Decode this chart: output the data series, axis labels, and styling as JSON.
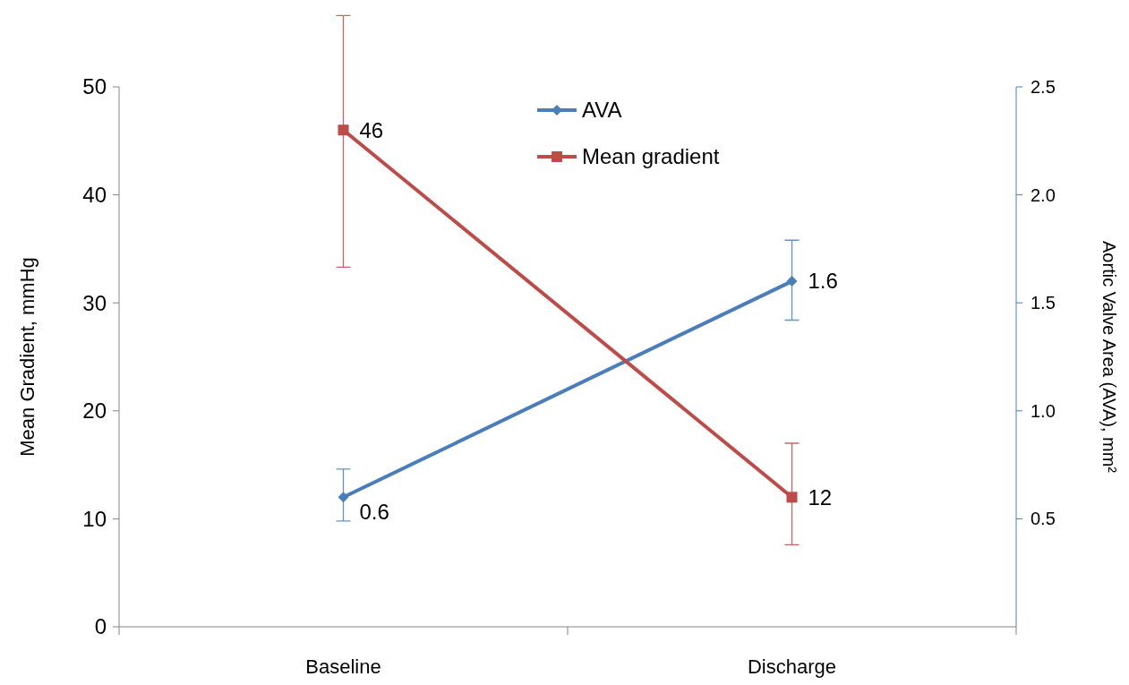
{
  "chart_data": {
    "type": "line",
    "categories": [
      "Baseline",
      "Discharge"
    ],
    "ylabel": "Mean Gradient, mmHg",
    "y2label": "Aortic Valve Area (AVA), mm²",
    "ylim": [
      0,
      50
    ],
    "yticks": [
      0,
      10,
      20,
      30,
      40,
      50
    ],
    "y2lim": [
      0,
      2.5
    ],
    "y2ticks": [
      {
        "value": 0.5,
        "label": "0.5"
      },
      {
        "value": 1.0,
        "label": "1.0"
      },
      {
        "value": 1.5,
        "label": "1.5"
      },
      {
        "value": 2.0,
        "label": "2.0"
      },
      {
        "value": 2.5,
        "label": "2.5"
      }
    ],
    "series": [
      {
        "name": "AVA",
        "color": "#4a7ebb",
        "values": [
          0.6,
          1.6
        ],
        "errors": [
          [
            0.49,
            0.73
          ],
          [
            1.42,
            1.79
          ]
        ],
        "axis": "y2",
        "marker": "diamond"
      },
      {
        "name": "Mean gradient",
        "color": "#be4b48",
        "values": [
          46,
          12
        ],
        "errors": [
          [
            33.3,
            56.6
          ],
          [
            7.6,
            17
          ]
        ],
        "marker": "square"
      }
    ],
    "data_labels": true,
    "legend": "top",
    "grid": false,
    "line_style": "solid"
  }
}
